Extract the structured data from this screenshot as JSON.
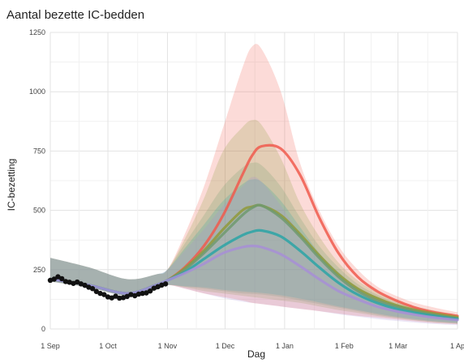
{
  "chart_data": {
    "type": "line",
    "title": "Aantal bezette IC-bedden",
    "xlabel": "Dag",
    "ylabel": "IC-bezetting",
    "y_ticks": [
      0,
      250,
      500,
      750,
      1000,
      1250
    ],
    "ylim": [
      0,
      1250
    ],
    "x_ticks": [
      "1 Sep",
      "1 Oct",
      "1 Nov",
      "1 Dec",
      "1 Jan",
      "1 Feb",
      "1 Mar",
      "1 Ap"
    ],
    "xlim": [
      0,
      212
    ],
    "grid": true,
    "colors": {
      "red": "#f05a4d",
      "olive": "#8f9a3a",
      "green": "#6f9a6e",
      "teal": "#2aa4a6",
      "purple": "#a78fd6",
      "observed": "#111111"
    },
    "observed": {
      "x": [
        0,
        2,
        4,
        6,
        8,
        10,
        12,
        14,
        16,
        18,
        20,
        22,
        24,
        26,
        28,
        30,
        32,
        34,
        36,
        38,
        40,
        42,
        44,
        46,
        48,
        50,
        52,
        54,
        56,
        58,
        60
      ],
      "y": [
        205,
        210,
        220,
        212,
        200,
        197,
        192,
        198,
        190,
        184,
        176,
        170,
        158,
        150,
        145,
        135,
        131,
        138,
        130,
        132,
        137,
        145,
        140,
        147,
        150,
        152,
        160,
        172,
        178,
        185,
        190
      ]
    },
    "series": [
      {
        "color": "red",
        "x": [
          0,
          20,
          40,
          55,
          61,
          70,
          80,
          90,
          100,
          105,
          110,
          120,
          130,
          140,
          150,
          160,
          170,
          180,
          190,
          200,
          212
        ],
        "y": [
          210,
          185,
          150,
          185,
          205,
          260,
          350,
          480,
          650,
          730,
          770,
          760,
          650,
          470,
          320,
          220,
          160,
          120,
          90,
          70,
          55
        ],
        "lower": [
          200,
          175,
          140,
          165,
          185,
          170,
          150,
          135,
          120,
          110,
          105,
          95,
          85,
          75,
          65,
          55,
          48,
          40,
          32,
          25,
          20
        ],
        "upper": [
          300,
          260,
          210,
          230,
          250,
          400,
          600,
          850,
          1100,
          1190,
          1180,
          1000,
          700,
          500,
          350,
          250,
          180,
          140,
          110,
          90,
          70
        ]
      },
      {
        "color": "olive",
        "x": [
          0,
          20,
          40,
          55,
          61,
          70,
          80,
          90,
          100,
          105,
          110,
          120,
          130,
          140,
          150,
          160,
          170,
          180,
          190,
          200,
          212
        ],
        "y": [
          210,
          185,
          150,
          185,
          205,
          255,
          330,
          420,
          500,
          515,
          520,
          480,
          400,
          310,
          230,
          170,
          130,
          100,
          80,
          65,
          50
        ],
        "lower": [
          200,
          175,
          140,
          165,
          185,
          175,
          160,
          150,
          140,
          135,
          130,
          120,
          110,
          95,
          80,
          68,
          55,
          45,
          36,
          28,
          22
        ],
        "upper": [
          300,
          260,
          210,
          230,
          250,
          380,
          550,
          750,
          850,
          880,
          860,
          720,
          530,
          390,
          280,
          205,
          155,
          120,
          95,
          78,
          60
        ]
      },
      {
        "color": "green",
        "x": [
          0,
          20,
          40,
          55,
          61,
          70,
          80,
          90,
          100,
          105,
          110,
          120,
          130,
          140,
          150,
          160,
          170,
          180,
          190,
          200,
          212
        ],
        "y": [
          210,
          185,
          150,
          185,
          205,
          250,
          320,
          400,
          480,
          510,
          520,
          470,
          390,
          300,
          220,
          160,
          120,
          95,
          75,
          60,
          45
        ],
        "lower": [
          200,
          175,
          140,
          165,
          185,
          178,
          170,
          160,
          150,
          148,
          145,
          135,
          120,
          105,
          90,
          75,
          60,
          48,
          38,
          30,
          24
        ],
        "upper": [
          300,
          260,
          210,
          230,
          250,
          360,
          480,
          600,
          680,
          700,
          690,
          600,
          470,
          350,
          260,
          190,
          145,
          112,
          90,
          72,
          55
        ]
      },
      {
        "color": "teal",
        "x": [
          0,
          20,
          40,
          55,
          61,
          70,
          80,
          90,
          100,
          105,
          110,
          120,
          130,
          140,
          150,
          160,
          170,
          180,
          190,
          200,
          212
        ],
        "y": [
          210,
          185,
          150,
          185,
          205,
          240,
          295,
          350,
          395,
          410,
          415,
          390,
          330,
          260,
          195,
          145,
          110,
          85,
          68,
          55,
          42
        ],
        "lower": [
          200,
          175,
          140,
          165,
          185,
          180,
          175,
          165,
          158,
          155,
          152,
          142,
          128,
          112,
          95,
          80,
          65,
          52,
          42,
          33,
          26
        ],
        "upper": [
          300,
          260,
          210,
          230,
          250,
          340,
          440,
          540,
          610,
          630,
          620,
          540,
          430,
          320,
          240,
          175,
          135,
          105,
          85,
          68,
          52
        ]
      },
      {
        "color": "purple",
        "x": [
          0,
          20,
          40,
          55,
          61,
          70,
          80,
          90,
          100,
          105,
          110,
          120,
          130,
          140,
          150,
          160,
          170,
          180,
          190,
          200,
          212
        ],
        "y": [
          210,
          185,
          150,
          185,
          205,
          235,
          275,
          320,
          345,
          350,
          345,
          315,
          265,
          210,
          160,
          125,
          95,
          75,
          60,
          48,
          38
        ],
        "lower": [
          200,
          175,
          140,
          165,
          185,
          170,
          150,
          130,
          115,
          110,
          105,
          95,
          85,
          75,
          62,
          52,
          42,
          34,
          27,
          21,
          16
        ],
        "upper": [
          300,
          260,
          210,
          230,
          250,
          330,
          420,
          520,
          600,
          640,
          620,
          520,
          400,
          300,
          220,
          165,
          125,
          98,
          78,
          62,
          48
        ]
      }
    ]
  }
}
